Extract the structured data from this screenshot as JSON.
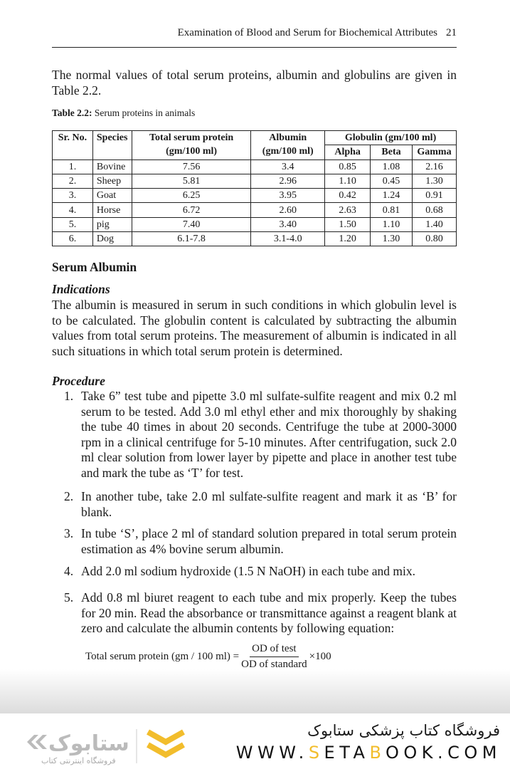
{
  "header": {
    "running_title": "Examination of Blood and Serum for Biochemical Attributes",
    "page_number": "21"
  },
  "intro": "The normal values of total serum proteins, albumin and globulins are given in Table 2.2.",
  "table": {
    "caption_label": "Table 2.2:",
    "caption_text": " Serum proteins in animals",
    "headers": {
      "sr": "Sr. No.",
      "species": "Species",
      "total": "Total serum protein (gm/100 ml)",
      "albumin": "Albumin (gm/100 ml)",
      "globulin": "Globulin (gm/100 ml)",
      "alpha": "Alpha",
      "beta": "Beta",
      "gamma": "Gamma"
    },
    "rows": [
      [
        "1.",
        "Bovine",
        "7.56",
        "3.4",
        "0.85",
        "1.08",
        "2.16"
      ],
      [
        "2.",
        "Sheep",
        "5.81",
        "2.96",
        "1.10",
        "0.45",
        "1.30"
      ],
      [
        "3.",
        "Goat",
        "6.25",
        "3.95",
        "0.42",
        "1.24",
        "0.91"
      ],
      [
        "4.",
        "Horse",
        "6.72",
        "2.60",
        "2.63",
        "0.81",
        "0.68"
      ],
      [
        "5.",
        "pig",
        "7.40",
        "3.40",
        "1.50",
        "1.10",
        "1.40"
      ],
      [
        "6.",
        "Dog",
        "6.1-7.8",
        "3.1-4.0",
        "1.20",
        "1.30",
        "0.80"
      ]
    ]
  },
  "section_title": "Serum Albumin",
  "indications": {
    "title": "Indications",
    "text": "The albumin is measured in serum in such conditions in which globulin level is to be calculated. The globulin content is calculated by subtracting the albumin values from total serum proteins. The measurement of albumin is indicated in all such situations in which total serum protein is determined."
  },
  "procedure": {
    "title": "Procedure",
    "steps": [
      {
        "n": "1.",
        "text": "Take 6” test tube and pipette 3.0 ml sulfate-sulfite reagent and mix 0.2 ml serum to be tested. Add 3.0 ml ethyl ether and mix thoroughly by shaking the tube 40 times in about 20 seconds. Centrifuge the tube at 2000-3000 rpm in a clinical centrifuge for 5-10 minutes. After centrifugation, suck 2.0 ml clear solution from lower layer by pipette and place in another test tube and mark the tube as ‘T’ for test."
      },
      {
        "n": "2.",
        "text": "In another tube, take 2.0 ml sulfate-sulfite reagent and mark it as ‘B’ for blank."
      },
      {
        "n": "3.",
        "text": "In tube ‘S’, place 2 ml of standard solution prepared in total serum protein estimation as 4% bovine serum albumin."
      },
      {
        "n": "4.",
        "text": "Add 2.0 ml sodium hydroxide (1.5 N NaOH) in each tube and mix."
      },
      {
        "n": "5.",
        "text": "Add 0.8 ml biuret reagent to each tube and mix properly. Keep the tubes for 20 min. Read the absorbance or transmittance against a reagent blank at zero and calculate the albumin contents by following equation:"
      }
    ]
  },
  "formula": {
    "lhs": "Total serum protein (gm / 100 ml) =",
    "numerator": "OD of test",
    "denominator": "OD of standard",
    "multiplier": "×100"
  },
  "banner": {
    "store_name_fa": "فروشگاه کتاب پزشکی ستابوک",
    "url_pre": "WWW.",
    "url_s": "S",
    "url_mid": "ETA",
    "url_b": "B",
    "url_post": "OOK.COM",
    "logo_text": "ستابوک",
    "logo_subtitle": "فروشگاه اینترنتی کتاب",
    "accent": "#f2bd2c"
  }
}
